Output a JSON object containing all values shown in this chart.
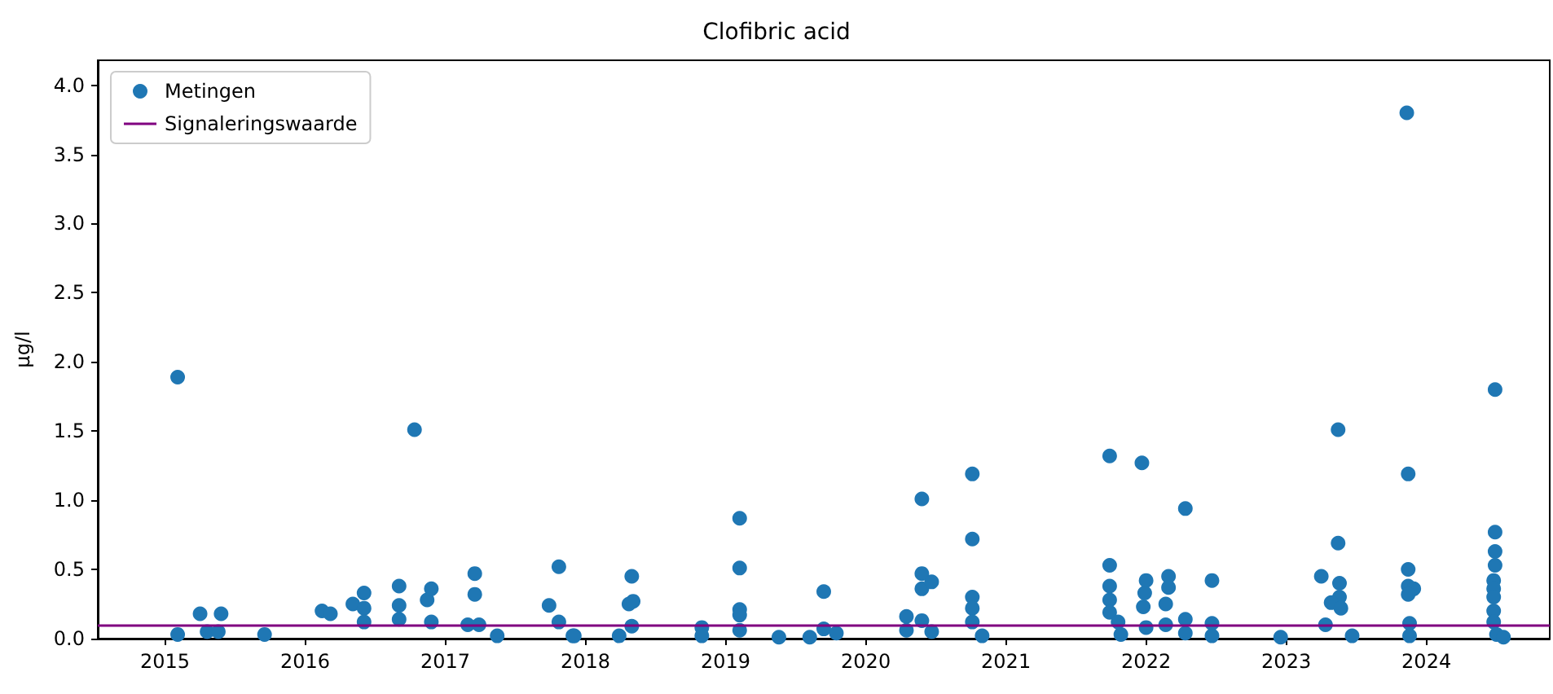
{
  "chart_data": {
    "type": "scatter",
    "title": "Clofibric acid",
    "ylabel": "µg/l",
    "legend": "top left",
    "grid": false,
    "marker": "circle",
    "xlim": [
      2014.52,
      2024.88
    ],
    "xticks": [
      2015,
      2016,
      2017,
      2018,
      2019,
      2020,
      2021,
      2022,
      2023,
      2024
    ],
    "ylim": [
      0,
      4.18
    ],
    "yticks": [
      {
        "value": 0,
        "label": "0.0"
      },
      {
        "value": 0.5,
        "label": "0.5"
      },
      {
        "value": 1,
        "label": "1.0"
      },
      {
        "value": 1.5,
        "label": "1.5"
      },
      {
        "value": 2,
        "label": "2.0"
      },
      {
        "value": 2.5,
        "label": "2.5"
      },
      {
        "value": 3,
        "label": "3.0"
      },
      {
        "value": 3.5,
        "label": "3.5"
      },
      {
        "value": 4,
        "label": "4.0"
      }
    ],
    "ref_lines": [
      {
        "axis": "y",
        "value": 0.1,
        "label": "Signaleringswaarde",
        "color": "#800080"
      }
    ],
    "series": [
      {
        "name": "Metingen",
        "color": "#1f77b4",
        "x": [
          2015.09,
          2015.09,
          2015.25,
          2015.4,
          2015.3,
          2015.38,
          2015.71,
          2016.78,
          2016.12,
          2016.18,
          2016.34,
          2016.42,
          2016.42,
          2016.42,
          2016.67,
          2016.67,
          2016.67,
          2016.87,
          2016.9,
          2016.9,
          2017.21,
          2017.21,
          2017.16,
          2017.24,
          2017.37,
          2017.74,
          2017.81,
          2017.81,
          2017.91,
          2017.92,
          2018.24,
          2018.33,
          2018.31,
          2018.34,
          2018.33,
          2018.83,
          2018.83,
          2019.1,
          2019.1,
          2019.1,
          2019.1,
          2019.1,
          2019.38,
          2019.6,
          2019.7,
          2019.7,
          2019.79,
          2020.29,
          2020.29,
          2020.4,
          2020.4,
          2020.4,
          2020.47,
          2020.4,
          2020.47,
          2020.76,
          2020.76,
          2020.76,
          2020.76,
          2020.76,
          2020.83,
          2021.74,
          2021.74,
          2021.74,
          2021.74,
          2021.74,
          2021.8,
          2021.82,
          2021.97,
          2022.0,
          2021.99,
          2021.98,
          2022.0,
          2022.16,
          2022.16,
          2022.14,
          2022.14,
          2022.28,
          2022.28,
          2022.28,
          2022.47,
          2022.47,
          2022.47,
          2022.96,
          2023.25,
          2023.37,
          2023.37,
          2023.38,
          2023.38,
          2023.32,
          2023.39,
          2023.28,
          2023.47,
          2023.86,
          2023.87,
          2023.87,
          2023.87,
          2023.91,
          2023.87,
          2023.88,
          2023.88,
          2024.49,
          2024.49,
          2024.49,
          2024.49,
          2024.48,
          2024.48,
          2024.48,
          2024.48,
          2024.48,
          2024.5,
          2024.55
        ],
        "values": [
          1.89,
          0.03,
          0.18,
          0.18,
          0.05,
          0.05,
          0.03,
          1.51,
          0.2,
          0.18,
          0.25,
          0.33,
          0.22,
          0.12,
          0.38,
          0.24,
          0.14,
          0.28,
          0.36,
          0.12,
          0.47,
          0.32,
          0.1,
          0.1,
          0.02,
          0.24,
          0.52,
          0.12,
          0.02,
          0.02,
          0.02,
          0.45,
          0.25,
          0.27,
          0.09,
          0.08,
          0.02,
          0.87,
          0.51,
          0.21,
          0.17,
          0.06,
          0.01,
          0.01,
          0.34,
          0.07,
          0.04,
          0.16,
          0.06,
          1.01,
          0.47,
          0.36,
          0.41,
          0.13,
          0.05,
          1.19,
          0.72,
          0.3,
          0.22,
          0.12,
          0.02,
          1.32,
          0.53,
          0.38,
          0.28,
          0.19,
          0.12,
          0.03,
          1.27,
          0.42,
          0.33,
          0.23,
          0.08,
          0.45,
          0.37,
          0.25,
          0.1,
          0.94,
          0.14,
          0.04,
          0.42,
          0.11,
          0.02,
          0.01,
          0.45,
          1.51,
          0.69,
          0.4,
          0.3,
          0.26,
          0.22,
          0.1,
          0.02,
          3.8,
          1.19,
          0.5,
          0.38,
          0.36,
          0.32,
          0.11,
          0.02,
          1.8,
          0.77,
          0.63,
          0.53,
          0.42,
          0.36,
          0.3,
          0.2,
          0.12,
          0.03,
          0.01
        ]
      }
    ]
  }
}
